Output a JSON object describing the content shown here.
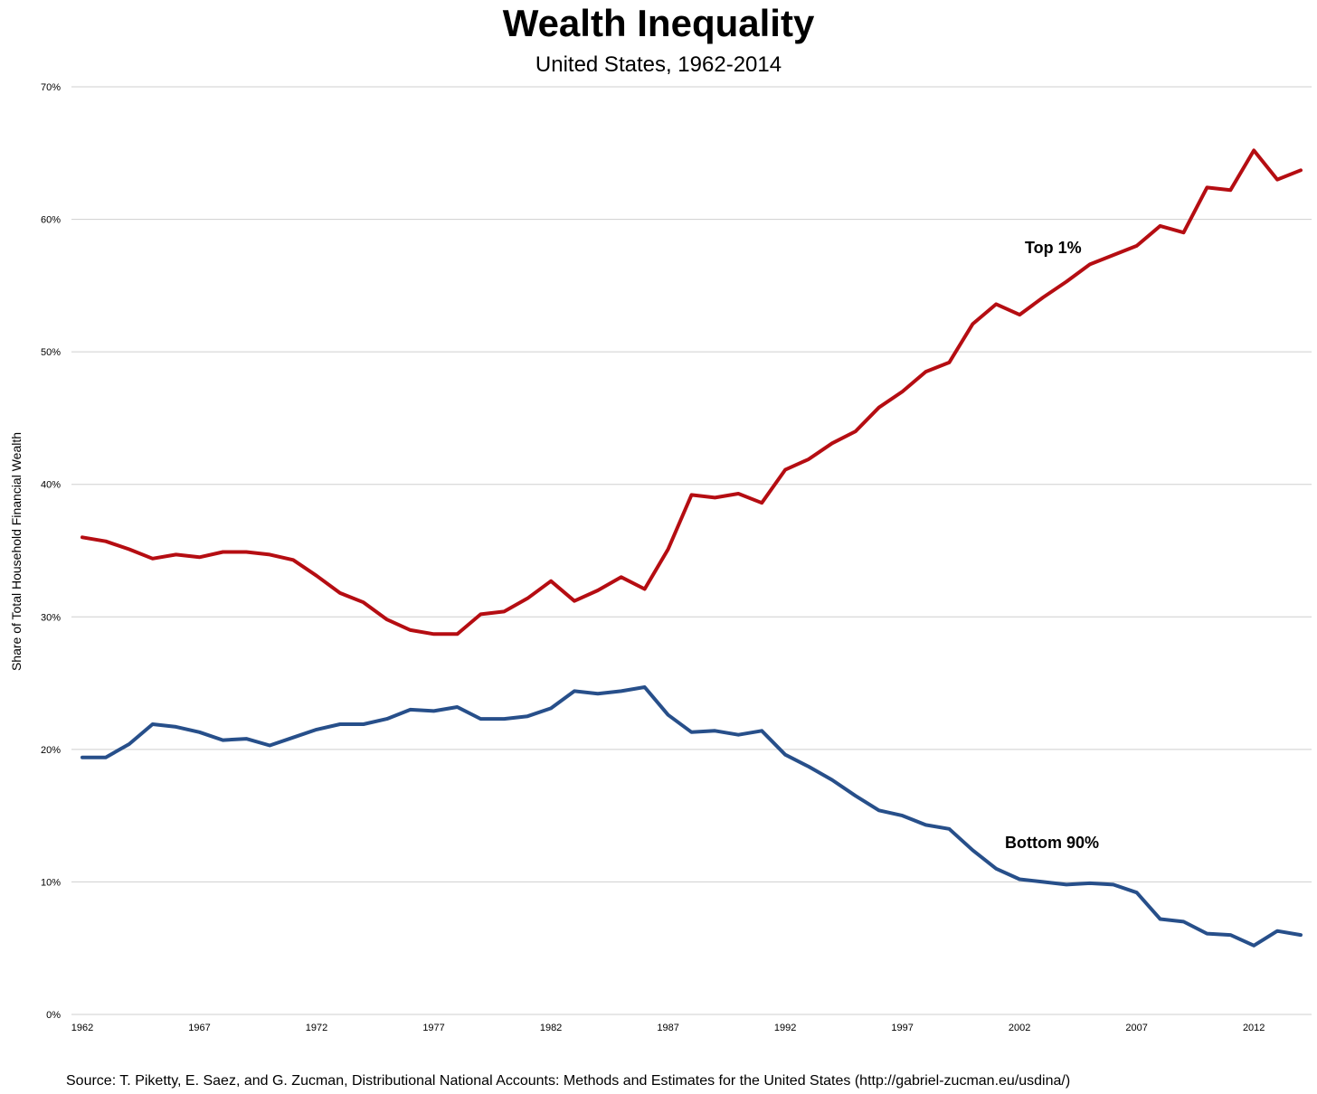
{
  "chart_data": {
    "type": "line",
    "title": "Wealth Inequality",
    "subtitle": "United States, 1962-2014",
    "ylabel": "Share of Total Household Financial Wealth",
    "xlabel": "",
    "source": "Source: T. Piketty, E. Saez, and G. Zucman,  Distributional National Accounts: Methods and Estimates for the United States (http://gabriel-zucman.eu/usdina/)",
    "ylim": [
      0,
      70
    ],
    "xlim": [
      1962,
      2014
    ],
    "grid": "horizontal",
    "legend": "none",
    "y_ticks": [
      "0%",
      "10%",
      "20%",
      "30%",
      "40%",
      "50%",
      "60%",
      "70%"
    ],
    "y_tick_values": [
      0,
      10,
      20,
      30,
      40,
      50,
      60,
      70
    ],
    "x_ticks": [
      "1962",
      "1967",
      "1972",
      "1977",
      "1982",
      "1987",
      "1992",
      "1997",
      "2002",
      "2007",
      "2012"
    ],
    "x_tick_values": [
      1962,
      1967,
      1972,
      1977,
      1982,
      1987,
      1992,
      1997,
      2002,
      2007,
      2012
    ],
    "x": [
      1962,
      1963,
      1964,
      1965,
      1966,
      1967,
      1968,
      1969,
      1970,
      1971,
      1972,
      1973,
      1974,
      1975,
      1976,
      1977,
      1978,
      1979,
      1980,
      1981,
      1982,
      1983,
      1984,
      1985,
      1986,
      1987,
      1988,
      1989,
      1990,
      1991,
      1992,
      1993,
      1994,
      1995,
      1996,
      1997,
      1998,
      1999,
      2000,
      2001,
      2002,
      2003,
      2004,
      2005,
      2006,
      2007,
      2008,
      2009,
      2010,
      2011,
      2012,
      2013,
      2014
    ],
    "series": [
      {
        "label": "Top 1%",
        "color": "#b50d12",
        "values": [
          36.0,
          35.7,
          35.1,
          34.4,
          34.7,
          34.5,
          34.9,
          34.9,
          34.7,
          34.3,
          33.1,
          31.8,
          31.1,
          29.8,
          29.0,
          28.7,
          28.7,
          30.2,
          30.4,
          31.4,
          32.7,
          31.2,
          32.0,
          33.0,
          32.1,
          35.1,
          39.2,
          39.0,
          39.3,
          38.6,
          41.1,
          41.9,
          43.1,
          44.0,
          45.8,
          47.0,
          48.5,
          49.2,
          52.1,
          53.6,
          52.8,
          54.1,
          55.3,
          56.6,
          57.3,
          58.0,
          59.5,
          59.0,
          62.4,
          62.2,
          65.2,
          63.0,
          63.7
        ]
      },
      {
        "label": "Bottom 90%",
        "color": "#274f8a",
        "values": [
          19.4,
          19.4,
          20.4,
          21.9,
          21.7,
          21.3,
          20.7,
          20.8,
          20.3,
          20.9,
          21.5,
          21.9,
          21.9,
          22.3,
          23.0,
          22.9,
          23.2,
          22.3,
          22.3,
          22.5,
          23.1,
          24.4,
          24.2,
          24.4,
          24.7,
          22.6,
          21.3,
          21.4,
          21.1,
          21.4,
          19.6,
          18.7,
          17.7,
          16.5,
          15.4,
          15.0,
          14.3,
          14.0,
          12.4,
          11.0,
          10.2,
          10.0,
          9.8,
          9.9,
          9.8,
          9.2,
          7.2,
          7.0,
          6.1,
          6.0,
          5.2,
          6.3,
          6.0
        ]
      }
    ]
  }
}
